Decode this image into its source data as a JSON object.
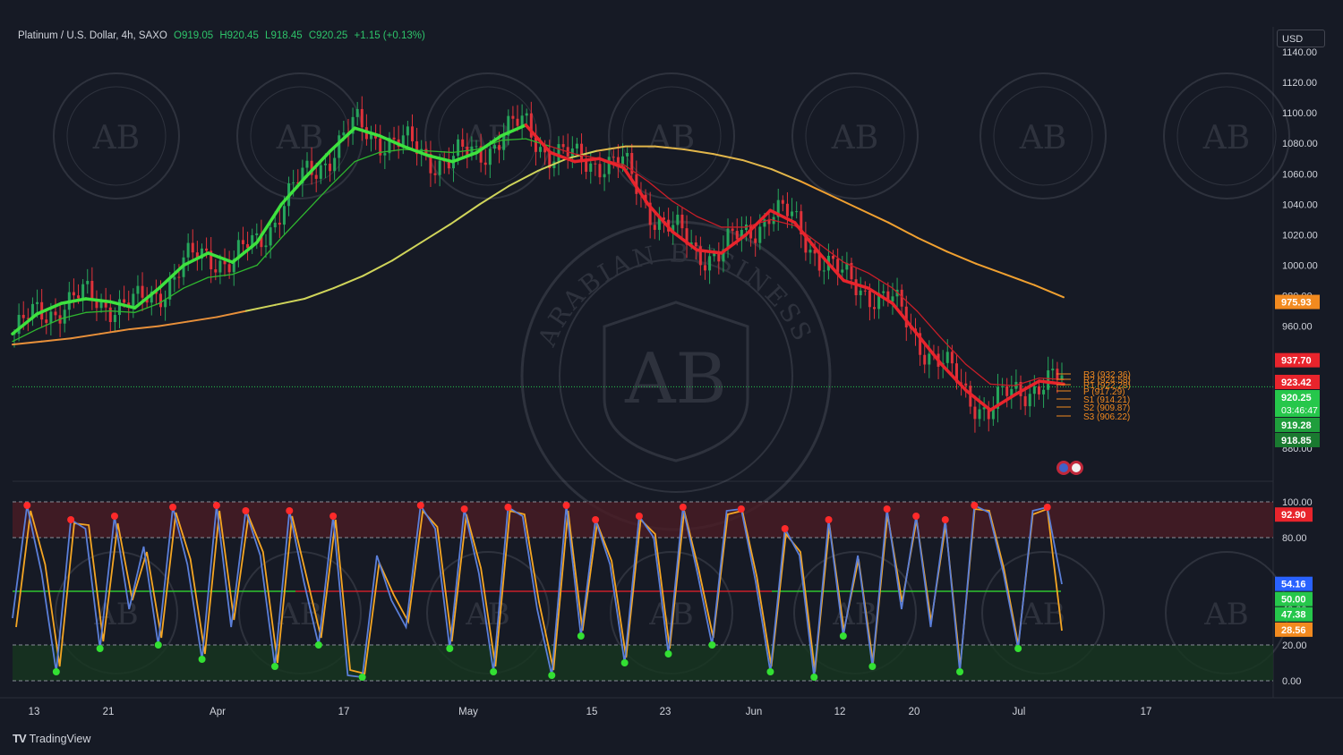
{
  "header": {
    "symbol": "Platinum / U.S. Dollar, 4h, SAXO",
    "open": "O919.05",
    "high": "H920.45",
    "low": "L918.45",
    "close": "C920.25",
    "change": "+1.15 (+0.13%)"
  },
  "currency": "USD",
  "brand": "TradingView",
  "watermark": {
    "arc_text": "ARABIAN BUSINESS ACADEMY",
    "mark": "AB"
  },
  "colors": {
    "background": "#161a25",
    "up": "#26a65b",
    "down": "#e0323a",
    "ma_bull": "#3ee23e",
    "ma_bear": "#e8242c",
    "ma_slow": "#d9c04a",
    "stoch_k": "#5b7fd9",
    "stoch_d": "#f5a623",
    "overbought": "#4a1c24",
    "oversold": "#16361f"
  },
  "chart_data": [
    {
      "type": "line",
      "title": "Platinum / U.S. Dollar, 4h, SAXO",
      "ylim": [
        870,
        1140
      ],
      "x_ticks": [
        "13",
        "21",
        "Apr",
        "17",
        "May",
        "15",
        "23",
        "Jun",
        "12",
        "20",
        "Jul",
        "17"
      ],
      "y_ticks": [
        "1140.00",
        "1120.00",
        "1100.00",
        "1080.00",
        "1060.00",
        "1040.00",
        "1020.00",
        "1000.00",
        "980.00",
        "960.00",
        "880.00"
      ],
      "series": [
        {
          "key": "fast_ma",
          "values": [
            955,
            968,
            975,
            978,
            976,
            972,
            985,
            1000,
            1008,
            1002,
            1015,
            1040,
            1058,
            1075,
            1090,
            1085,
            1078,
            1072,
            1068,
            1074,
            1085,
            1092,
            1074,
            1068,
            1070,
            1064,
            1040,
            1022,
            1010,
            1008,
            1020,
            1036,
            1028,
            1008,
            990,
            985,
            975,
            955,
            935,
            918,
            905,
            915,
            924,
            922
          ]
        },
        {
          "key": "mid_ma",
          "values": [
            950,
            958,
            965,
            969,
            970,
            969,
            975,
            985,
            992,
            994,
            1000,
            1018,
            1035,
            1052,
            1068,
            1074,
            1076,
            1075,
            1074,
            1076,
            1082,
            1083,
            1078,
            1073,
            1070,
            1066,
            1055,
            1042,
            1032,
            1025,
            1025,
            1030,
            1026,
            1014,
            1002,
            995,
            985,
            970,
            952,
            935,
            922,
            921,
            926,
            925
          ]
        },
        {
          "key": "slow_ma",
          "values": [
            948,
            950,
            952,
            955,
            958,
            960,
            963,
            966,
            970,
            974,
            978,
            985,
            993,
            1003,
            1015,
            1027,
            1040,
            1052,
            1062,
            1070,
            1075,
            1078,
            1078,
            1076,
            1073,
            1069,
            1063,
            1055,
            1046,
            1037,
            1028,
            1018,
            1009,
            1001,
            994,
            987,
            979
          ]
        }
      ],
      "price_labels": [
        {
          "text": "975.93",
          "value": 975.93,
          "color": "#f28a1f"
        },
        {
          "text": "937.70",
          "value": 937.7,
          "color": "#e8242c"
        },
        {
          "text": "923.42",
          "value": 923.42,
          "color": "#e8242c"
        },
        {
          "text": "920.25",
          "value": 920.25,
          "color": "#26c74b",
          "sub": "03:46:47"
        },
        {
          "text": "919.28",
          "value": 919.28,
          "color": "#1f9e3c"
        },
        {
          "text": "918.85",
          "value": 918.85,
          "color": "#1a7a30"
        }
      ],
      "pivots": [
        "R3 (932.36)",
        "R2 (924.58)",
        "R1 (922.28)",
        "P (917.29)",
        "S1 (914.21)",
        "S2 (909.87)",
        "S3 (906.22)"
      ],
      "current_price": 920.25
    },
    {
      "type": "line",
      "title": "Stochastic",
      "ylim": [
        0,
        100
      ],
      "y_ticks": [
        "100.00",
        "80.00",
        "40.00",
        "20.00",
        "0.00"
      ],
      "levels": [
        100,
        80,
        50,
        20,
        0
      ],
      "value_labels": [
        {
          "text": "92.90",
          "value": 92.9,
          "color": "#e8242c"
        },
        {
          "text": "54.16",
          "value": 54.16,
          "color": "#2962ff"
        },
        {
          "text": "50.00",
          "value": 50.0,
          "color": "#26c74b"
        },
        {
          "text": "47.38",
          "value": 47.38,
          "color": "#26c74b"
        },
        {
          "text": "28.56",
          "value": 28.56,
          "color": "#f28a1f"
        }
      ],
      "series": [
        {
          "key": "k",
          "values": [
            35,
            98,
            60,
            5,
            90,
            85,
            18,
            92,
            40,
            75,
            20,
            97,
            65,
            12,
            98,
            30,
            95,
            70,
            8,
            95,
            55,
            20,
            92,
            3,
            2,
            70,
            45,
            30,
            98,
            85,
            18,
            96,
            60,
            5,
            97,
            92,
            40,
            3,
            98,
            25,
            90,
            65,
            10,
            92,
            80,
            15,
            97,
            60,
            20,
            95,
            96,
            55,
            5,
            85,
            70,
            2,
            90,
            25,
            70,
            8,
            96,
            40,
            92,
            30,
            90,
            5,
            98,
            94,
            60,
            18,
            95,
            97,
            54
          ]
        },
        {
          "key": "d",
          "values": [
            30,
            95,
            65,
            8,
            88,
            87,
            22,
            88,
            45,
            72,
            24,
            94,
            68,
            15,
            95,
            34,
            92,
            72,
            10,
            92,
            58,
            24,
            90,
            6,
            4,
            66,
            48,
            33,
            95,
            86,
            22,
            93,
            63,
            8,
            95,
            93,
            44,
            6,
            95,
            28,
            88,
            67,
            13,
            90,
            82,
            18,
            95,
            62,
            24,
            93,
            95,
            58,
            8,
            82,
            72,
            5,
            87,
            28,
            68,
            10,
            93,
            44,
            90,
            33,
            87,
            8,
            96,
            95,
            63,
            20,
            93,
            96,
            28
          ]
        }
      ]
    }
  ]
}
